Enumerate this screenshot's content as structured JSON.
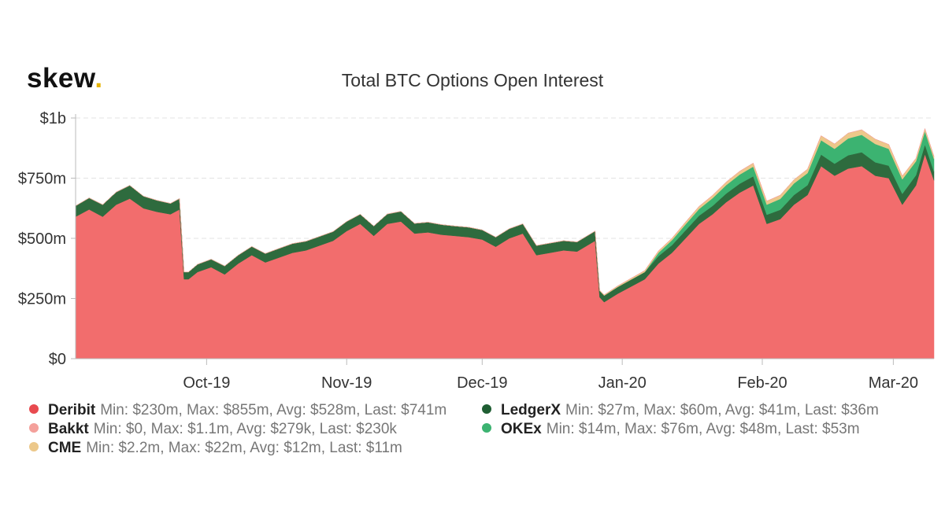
{
  "logo": {
    "text": "skew",
    "dot": "."
  },
  "chart_data": {
    "type": "area",
    "stacked": true,
    "title": "Total BTC Options Open Interest",
    "x_ticks": [
      "Oct-19",
      "Nov-19",
      "Dec-19",
      "Jan-20",
      "Feb-20",
      "Mar-20"
    ],
    "x_tick_dates": [
      "2019-10-01",
      "2019-11-01",
      "2019-12-01",
      "2020-01-01",
      "2020-02-01",
      "2020-03-01"
    ],
    "y_ticks": [
      "$0",
      "$250m",
      "$500m",
      "$750m",
      "$1b"
    ],
    "ylim": [
      0,
      1000
    ],
    "unit": "USD millions",
    "grid": "horizontal dashed",
    "legend_position": "bottom",
    "x_range": [
      "2019-09-02",
      "2020-03-10"
    ],
    "x": [
      "2019-09-02",
      "2019-09-05",
      "2019-09-08",
      "2019-09-11",
      "2019-09-14",
      "2019-09-17",
      "2019-09-20",
      "2019-09-23",
      "2019-09-25",
      "2019-09-26",
      "2019-09-27",
      "2019-09-29",
      "2019-10-02",
      "2019-10-05",
      "2019-10-08",
      "2019-10-11",
      "2019-10-14",
      "2019-10-17",
      "2019-10-20",
      "2019-10-23",
      "2019-10-26",
      "2019-10-29",
      "2019-11-01",
      "2019-11-04",
      "2019-11-07",
      "2019-11-10",
      "2019-11-13",
      "2019-11-16",
      "2019-11-19",
      "2019-11-22",
      "2019-11-25",
      "2019-11-28",
      "2019-12-01",
      "2019-12-04",
      "2019-12-07",
      "2019-12-10",
      "2019-12-13",
      "2019-12-16",
      "2019-12-19",
      "2019-12-22",
      "2019-12-26",
      "2019-12-27",
      "2019-12-28",
      "2019-12-31",
      "2020-01-03",
      "2020-01-06",
      "2020-01-09",
      "2020-01-12",
      "2020-01-15",
      "2020-01-18",
      "2020-01-21",
      "2020-01-24",
      "2020-01-27",
      "2020-01-30",
      "2020-02-02",
      "2020-02-05",
      "2020-02-08",
      "2020-02-11",
      "2020-02-14",
      "2020-02-17",
      "2020-02-20",
      "2020-02-23",
      "2020-02-26",
      "2020-02-29",
      "2020-03-03",
      "2020-03-06",
      "2020-03-08",
      "2020-03-10"
    ],
    "series": [
      {
        "name": "Deribit",
        "color": "#f26d6d",
        "min": "$230m",
        "max": "$855m",
        "avg": "$528m",
        "last": "$741m",
        "values": [
          590,
          620,
          590,
          640,
          665,
          625,
          610,
          600,
          620,
          330,
          330,
          360,
          380,
          350,
          395,
          430,
          400,
          420,
          440,
          450,
          470,
          490,
          530,
          560,
          510,
          560,
          570,
          520,
          525,
          515,
          510,
          505,
          495,
          465,
          500,
          520,
          430,
          440,
          450,
          445,
          490,
          255,
          235,
          270,
          300,
          330,
          395,
          440,
          500,
          560,
          600,
          650,
          690,
          720,
          560,
          580,
          640,
          680,
          800,
          760,
          790,
          800,
          760,
          750,
          640,
          720,
          850,
          741
        ]
      },
      {
        "name": "LedgerX",
        "color": "#2e6b3e",
        "min": "$27m",
        "max": "$60m",
        "avg": "$41m",
        "last": "$36m",
        "values": [
          45,
          48,
          50,
          52,
          55,
          50,
          48,
          45,
          45,
          30,
          30,
          32,
          33,
          35,
          35,
          36,
          37,
          38,
          38,
          38,
          38,
          38,
          40,
          40,
          41,
          41,
          42,
          42,
          42,
          42,
          41,
          41,
          40,
          40,
          40,
          40,
          40,
          40,
          40,
          40,
          40,
          27,
          27,
          28,
          29,
          30,
          31,
          32,
          33,
          34,
          35,
          36,
          37,
          38,
          38,
          39,
          40,
          41,
          48,
          50,
          55,
          58,
          56,
          52,
          45,
          42,
          40,
          36
        ]
      },
      {
        "name": "OKEx",
        "color": "#3cb371",
        "min": "$14m",
        "max": "$76m",
        "avg": "$48m",
        "last": "$53m",
        "values": [
          0,
          0,
          0,
          0,
          0,
          0,
          0,
          0,
          0,
          0,
          0,
          0,
          0,
          0,
          0,
          0,
          0,
          0,
          0,
          0,
          0,
          0,
          0,
          0,
          0,
          0,
          0,
          0,
          0,
          0,
          0,
          0,
          0,
          0,
          0,
          0,
          0,
          0,
          0,
          0,
          0,
          0,
          0,
          0,
          0,
          0,
          14,
          20,
          25,
          28,
          32,
          35,
          38,
          40,
          42,
          45,
          48,
          50,
          60,
          62,
          70,
          72,
          76,
          70,
          60,
          58,
          55,
          53
        ]
      },
      {
        "name": "CME",
        "color": "#ecc88a",
        "min": "$2.2m",
        "max": "$22m",
        "avg": "$12m",
        "last": "$11m",
        "values": [
          0,
          0,
          0,
          0,
          0,
          0,
          0,
          0,
          0,
          0,
          0,
          0,
          0,
          0,
          0,
          0,
          0,
          0,
          0,
          0,
          0,
          0,
          0,
          0,
          0,
          0,
          0,
          0,
          0,
          0,
          0,
          0,
          0,
          0,
          0,
          0,
          0,
          0,
          0,
          0,
          0,
          2.2,
          3,
          4,
          5,
          6,
          7,
          8,
          9,
          10,
          11,
          12,
          13,
          14,
          14,
          15,
          15,
          16,
          18,
          20,
          22,
          21,
          20,
          18,
          14,
          12,
          11,
          11
        ]
      },
      {
        "name": "Bakkt",
        "color": "#f4a09b",
        "min": "$0",
        "max": "$1.1m",
        "avg": "$279k",
        "last": "$230k",
        "values": [
          0,
          0,
          0,
          0,
          0,
          0,
          0,
          0,
          0,
          0,
          0,
          0,
          0,
          0,
          0,
          0,
          0,
          0,
          0,
          0,
          0,
          0,
          0,
          0,
          0,
          0,
          0,
          0,
          0,
          0,
          0,
          0,
          0.1,
          0.2,
          0.2,
          0.3,
          0.3,
          0.3,
          0.4,
          0.4,
          0.4,
          0.4,
          0.4,
          0.5,
          0.5,
          0.6,
          0.6,
          0.7,
          0.8,
          0.9,
          1.0,
          1.1,
          1.0,
          0.9,
          0.8,
          0.7,
          0.6,
          0.5,
          0.4,
          0.4,
          0.3,
          0.3,
          0.3,
          0.3,
          0.25,
          0.23,
          0.23,
          0.23
        ]
      }
    ]
  },
  "legend": {
    "left": [
      {
        "name": "Deribit",
        "color": "#e84a4f",
        "stats": "Min: $230m, Max: $855m, Avg: $528m, Last: $741m"
      },
      {
        "name": "Bakkt",
        "color": "#f4a09b",
        "stats": "Min: $0, Max: $1.1m, Avg: $279k, Last: $230k"
      },
      {
        "name": "CME",
        "color": "#ecc88a",
        "stats": "Min: $2.2m, Max: $22m, Avg: $12m, Last: $11m"
      }
    ],
    "right": [
      {
        "name": "LedgerX",
        "color": "#1f5e33",
        "stats": "Min: $27m, Max: $60m, Avg: $41m, Last: $36m"
      },
      {
        "name": "OKEx",
        "color": "#3cb371",
        "stats": "Min: $14m, Max: $76m, Avg: $48m, Last: $53m"
      }
    ]
  }
}
